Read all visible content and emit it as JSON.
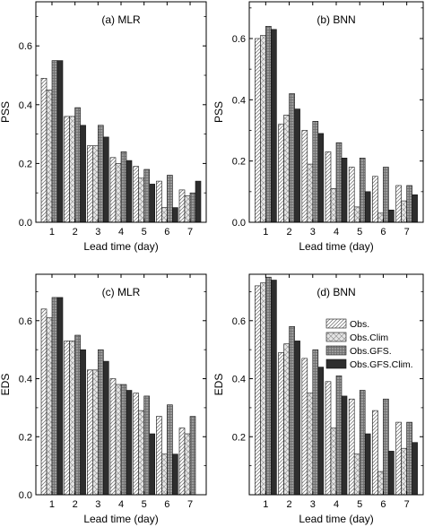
{
  "chart_data": [
    {
      "type": "bar",
      "title": "(a) MLR",
      "xlabel": "Lead time (day)",
      "ylabel": "PSS",
      "categories": [
        "1",
        "2",
        "3",
        "4",
        "5",
        "6",
        "7"
      ],
      "ylim": [
        0,
        0.75
      ],
      "yticks": [
        "0.0",
        "0.2",
        "0.4",
        "0.6"
      ],
      "series": [
        {
          "name": "Obs.",
          "values": [
            0.49,
            0.36,
            0.26,
            0.22,
            0.19,
            0.14,
            0.11
          ]
        },
        {
          "name": "Obs.Clim",
          "values": [
            0.45,
            0.36,
            0.26,
            0.2,
            0.15,
            0.05,
            0.09
          ]
        },
        {
          "name": "Obs.GFS.",
          "values": [
            0.55,
            0.39,
            0.33,
            0.24,
            0.18,
            0.16,
            0.1
          ]
        },
        {
          "name": "Obs.GFS.Clim.",
          "values": [
            0.55,
            0.33,
            0.29,
            0.21,
            0.13,
            0.05,
            0.14
          ]
        }
      ]
    },
    {
      "type": "bar",
      "title": "(b) BNN",
      "xlabel": "Lead time (day)",
      "ylabel": "PSS",
      "categories": [
        "1",
        "2",
        "3",
        "4",
        "5",
        "6",
        "7"
      ],
      "ylim": [
        0,
        0.72
      ],
      "yticks": [
        "0.0",
        "0.2",
        "0.4",
        "0.6"
      ],
      "series": [
        {
          "name": "Obs.",
          "values": [
            0.6,
            0.32,
            0.3,
            0.23,
            0.18,
            0.15,
            0.12
          ]
        },
        {
          "name": "Obs.Clim",
          "values": [
            0.61,
            0.35,
            0.19,
            0.11,
            0.05,
            0.03,
            0.07
          ]
        },
        {
          "name": "Obs.GFS.",
          "values": [
            0.64,
            0.42,
            0.33,
            0.26,
            0.21,
            0.18,
            0.12
          ]
        },
        {
          "name": "Obs.GFS.Clim.",
          "values": [
            0.63,
            0.37,
            0.29,
            0.21,
            0.1,
            0.04,
            0.09
          ]
        }
      ]
    },
    {
      "type": "bar",
      "title": "(c) MLR",
      "xlabel": "Lead time (day)",
      "ylabel": "EDS",
      "categories": [
        "1",
        "2",
        "3",
        "4",
        "5",
        "6",
        "7"
      ],
      "ylim": [
        0,
        0.76
      ],
      "yticks": [
        "0.0",
        "0.2",
        "0.4",
        "0.6"
      ],
      "series": [
        {
          "name": "Obs.",
          "values": [
            0.64,
            0.53,
            0.43,
            0.4,
            0.35,
            0.27,
            0.23
          ]
        },
        {
          "name": "Obs.Clim",
          "values": [
            0.61,
            0.53,
            0.43,
            0.38,
            0.29,
            0.14,
            0.21
          ]
        },
        {
          "name": "Obs.GFS.",
          "values": [
            0.68,
            0.55,
            0.5,
            0.38,
            0.34,
            0.31,
            0.27
          ]
        },
        {
          "name": "Obs.GFS.Clim.",
          "values": [
            0.68,
            0.5,
            0.46,
            0.36,
            0.21,
            0.14,
            0.0
          ]
        }
      ]
    },
    {
      "type": "bar",
      "title": "(d) BNN",
      "xlabel": "Lead time (day)",
      "ylabel": "EDS",
      "categories": [
        "1",
        "2",
        "3",
        "4",
        "5",
        "6",
        "7"
      ],
      "ylim": [
        0,
        0.76
      ],
      "yticks": [
        "0.2",
        "0.4",
        "0.6"
      ],
      "legend_position": "right",
      "series": [
        {
          "name": "Obs.",
          "values": [
            0.72,
            0.49,
            0.47,
            0.39,
            0.33,
            0.29,
            0.25
          ]
        },
        {
          "name": "Obs.Clim",
          "values": [
            0.73,
            0.52,
            0.35,
            0.23,
            0.14,
            0.08,
            0.16
          ]
        },
        {
          "name": "Obs.GFS.",
          "values": [
            0.75,
            0.58,
            0.5,
            0.41,
            0.36,
            0.33,
            0.25
          ]
        },
        {
          "name": "Obs.GFS.Clim.",
          "values": [
            0.74,
            0.53,
            0.44,
            0.34,
            0.21,
            0.15,
            0.18
          ]
        }
      ]
    }
  ]
}
